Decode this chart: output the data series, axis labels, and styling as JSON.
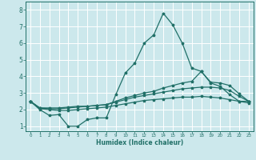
{
  "title": "",
  "xlabel": "Humidex (Indice chaleur)",
  "xlim": [
    -0.5,
    23.5
  ],
  "ylim": [
    0.7,
    8.5
  ],
  "xticks": [
    0,
    1,
    2,
    3,
    4,
    5,
    6,
    7,
    8,
    9,
    10,
    11,
    12,
    13,
    14,
    15,
    16,
    17,
    18,
    19,
    20,
    21,
    22,
    23
  ],
  "yticks": [
    1,
    2,
    3,
    4,
    5,
    6,
    7,
    8
  ],
  "background_color": "#cce8ec",
  "grid_color": "#ffffff",
  "line_color": "#217068",
  "line1_y": [
    2.5,
    2.0,
    1.65,
    1.7,
    1.0,
    1.0,
    1.4,
    1.5,
    1.5,
    2.9,
    4.2,
    4.8,
    6.0,
    6.5,
    7.8,
    7.1,
    6.0,
    4.5,
    4.3,
    3.6,
    3.4,
    2.9,
    2.5,
    2.5
  ],
  "line2_y": [
    2.5,
    2.1,
    2.1,
    2.1,
    2.15,
    2.2,
    2.2,
    2.25,
    2.3,
    2.5,
    2.7,
    2.85,
    3.0,
    3.1,
    3.3,
    3.45,
    3.6,
    3.7,
    4.3,
    3.65,
    3.6,
    3.45,
    2.95,
    2.5
  ],
  "line3_y": [
    2.5,
    2.1,
    2.05,
    2.05,
    2.1,
    2.15,
    2.2,
    2.25,
    2.3,
    2.45,
    2.6,
    2.75,
    2.85,
    2.95,
    3.05,
    3.15,
    3.25,
    3.3,
    3.35,
    3.35,
    3.3,
    3.15,
    2.8,
    2.5
  ],
  "line4_y": [
    2.5,
    2.05,
    2.0,
    1.95,
    1.95,
    2.0,
    2.05,
    2.1,
    2.15,
    2.25,
    2.35,
    2.45,
    2.55,
    2.6,
    2.65,
    2.7,
    2.75,
    2.75,
    2.8,
    2.75,
    2.7,
    2.6,
    2.5,
    2.4
  ]
}
